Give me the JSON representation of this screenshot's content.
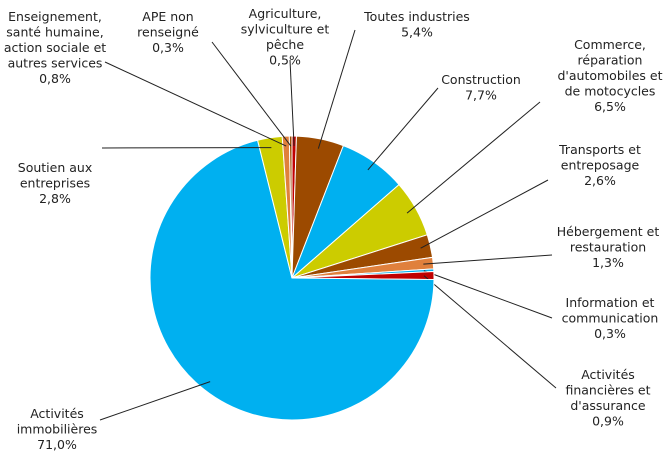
{
  "chart_data": {
    "type": "pie",
    "categories": [
      [
        "Agriculture,",
        "sylviculture et",
        "pêche"
      ],
      [
        "Toutes industries"
      ],
      [
        "Construction"
      ],
      [
        "Commerce,",
        "réparation",
        "d'automobiles et",
        "de motocycles"
      ],
      [
        "Transports et",
        "entreposage"
      ],
      [
        "Hébergement et",
        "restauration"
      ],
      [
        "Information et",
        "communication"
      ],
      [
        "Activités",
        "financières et",
        "d'assurance"
      ],
      [
        "Activités",
        "immobilières"
      ],
      [
        "Soutien aux",
        "entreprises"
      ],
      [
        "Enseignement,",
        "santé humaine,",
        "action sociale et",
        "autres services"
      ],
      [
        "APE non",
        "renseigné"
      ]
    ],
    "values": [
      0.5,
      5.4,
      7.7,
      6.5,
      2.6,
      1.3,
      0.3,
      0.9,
      71.0,
      2.8,
      0.8,
      0.3
    ],
    "value_labels": [
      "0,5%",
      "5,4%",
      "7,7%",
      "6,5%",
      "2,6%",
      "1,3%",
      "0,3%",
      "0,9%",
      "71,0%",
      "2,8%",
      "0,8%",
      "0,3%"
    ],
    "colors": [
      "#c00000",
      "#9c4a00",
      "#00b0f0",
      "#cccc00",
      "#9c4a00",
      "#e0803c",
      "#00b0f0",
      "#c00000",
      "#00b0f0",
      "#cccc00",
      "#e0803c",
      "#9c4a00"
    ]
  }
}
